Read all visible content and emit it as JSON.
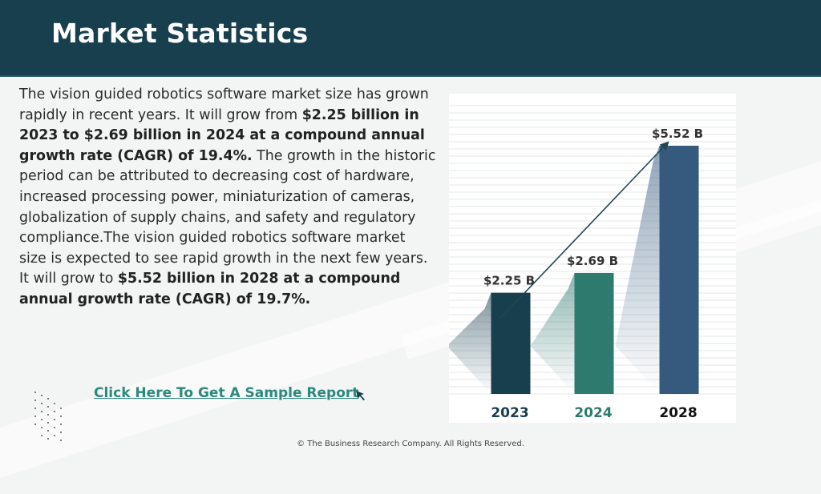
{
  "header": {
    "title": "Market Statistics"
  },
  "body": {
    "seg1": "The vision guided robotics software market size has grown rapidly in recent years. It will grow from ",
    "bold1": "$2.25 billion in 2023 to $2.69 billion in 2024 at a compound annual growth rate (CAGR) of 19.4%.",
    "seg2": "  The growth in the historic period can be attributed to decreasing cost of hardware, increased processing power, miniaturization of cameras, globalization of supply chains, and safety and regulatory compliance.The vision guided robotics software market size is expected to see rapid growth in the next few years. It will grow to ",
    "bold2": "$5.52 billion in 2028 at a compound annual growth rate (CAGR) of 19.7%."
  },
  "cta": {
    "label": "Click Here To Get A Sample Report"
  },
  "footer": {
    "text": "© The Business Research Company. All Rights Reserved."
  },
  "chart_data": {
    "type": "bar",
    "categories": [
      "2023",
      "2024",
      "2028"
    ],
    "values": [
      2.25,
      2.69,
      5.52
    ],
    "value_labels": [
      "$2.25 B",
      "$2.69 B",
      "$5.52 B"
    ],
    "bar_colors": [
      "#173f4e",
      "#2e7a6f",
      "#365a7e"
    ],
    "category_label_colors": [
      "#173f4e",
      "#2e7a6f",
      "#111111"
    ],
    "ylim": [
      0,
      5.52
    ],
    "grid": true,
    "trend_arrow": true
  }
}
